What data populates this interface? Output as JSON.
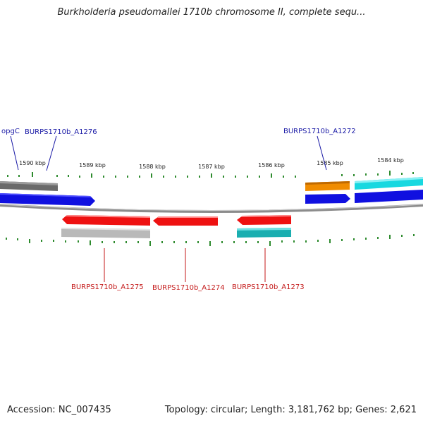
{
  "title": "Burkholderia pseudomallei 1710b chromosome II, complete sequ...",
  "accession_text": "Accession: NC_007435",
  "summary_text": "Topology: circular; Length: 3,181,762 bp; Genes: 2,621",
  "colors": {
    "backbone": "#8c8c8c",
    "tick": "#2e8b2e",
    "label_top": "#1a1aa6",
    "label_bottom": "#c41a1a",
    "gene_blue": "#1010e0",
    "gene_red": "#ee1111",
    "gene_gray_dark": "#6a6a6a",
    "gene_gray_light": "#b9b9b9",
    "gene_orange": "#f08c00",
    "gene_cyan": "#18d8e0",
    "gene_teal": "#1aaeb0"
  },
  "scale_labels": [
    "1590 kbp",
    "1589 kbp",
    "1588 kbp",
    "1587 kbp",
    "1586 kbp",
    "1585 kbp",
    "1584 kbp"
  ],
  "top_labels": [
    {
      "text": "opgC"
    },
    {
      "text": "BURPS1710b_A1276"
    },
    {
      "text": "BURPS1710b_A1272"
    }
  ],
  "bottom_labels": [
    {
      "text": "BURPS1710b_A1275"
    },
    {
      "text": "BURPS1710b_A1274"
    },
    {
      "text": "BURPS1710b_A1273"
    }
  ]
}
